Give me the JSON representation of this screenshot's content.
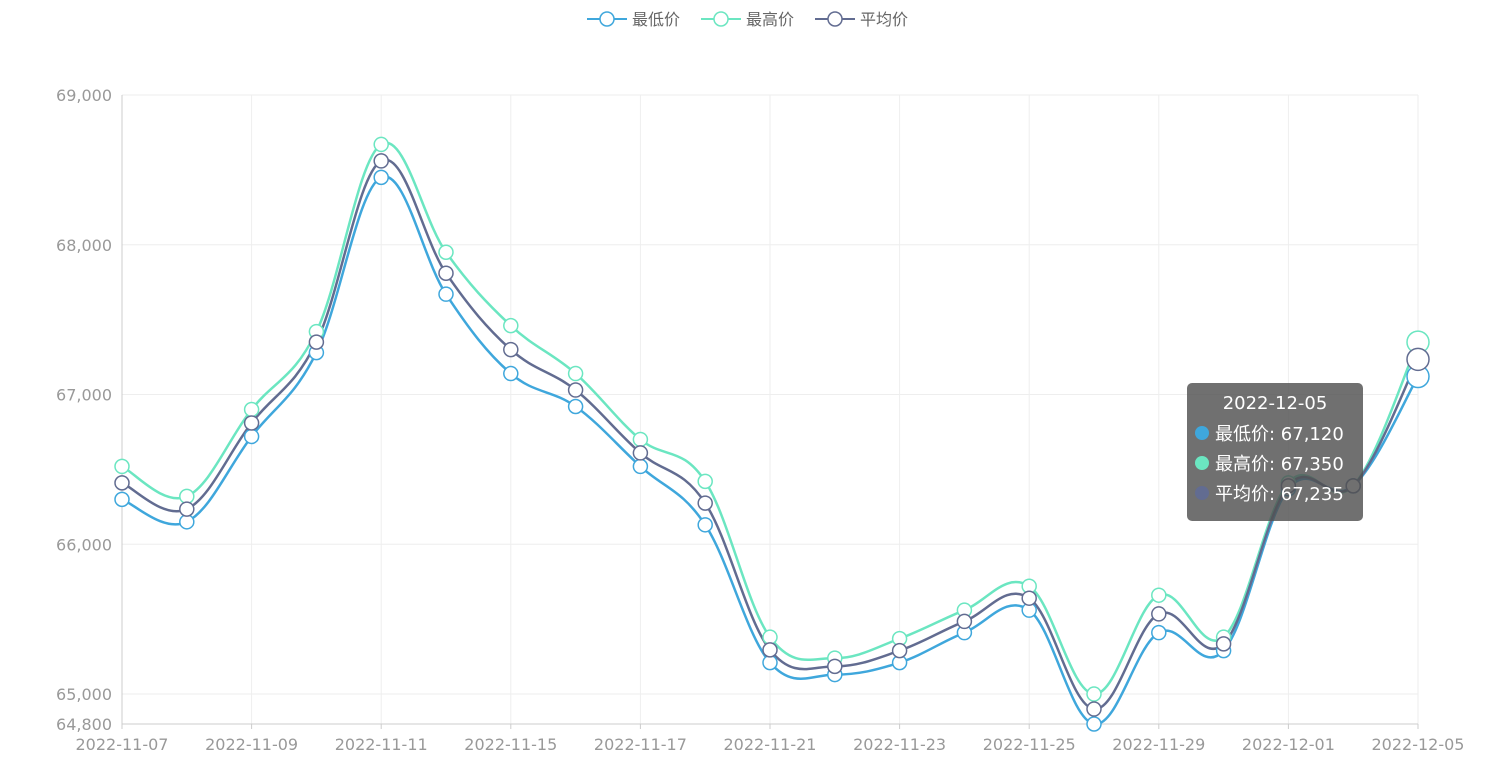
{
  "chart_data": {
    "type": "line",
    "smooth": true,
    "x": [
      "2022-11-07",
      "2022-11-08",
      "2022-11-09",
      "2022-11-10",
      "2022-11-11",
      "2022-11-14",
      "2022-11-15",
      "2022-11-16",
      "2022-11-17",
      "2022-11-18",
      "2022-11-21",
      "2022-11-22",
      "2022-11-23",
      "2022-11-24",
      "2022-11-25",
      "2022-11-28",
      "2022-11-29",
      "2022-11-30",
      "2022-12-01",
      "2022-12-02",
      "2022-12-05"
    ],
    "x_tick_labels": [
      "2022-11-07",
      "2022-11-09",
      "2022-11-11",
      "2022-11-15",
      "2022-11-17",
      "2022-11-21",
      "2022-11-23",
      "2022-11-25",
      "2022-11-29",
      "2022-12-01",
      "2022-12-05"
    ],
    "y_tick_labels": [
      "69,000",
      "68,000",
      "67,000",
      "66,000",
      "65,000",
      "64,800"
    ],
    "ylim": [
      64800,
      69000
    ],
    "grid": true,
    "legend_position": "top-center",
    "series": [
      {
        "name": "最低价",
        "color": "#3fa7dc",
        "values": [
          66300,
          66150,
          66720,
          67280,
          68450,
          67670,
          67140,
          66920,
          66520,
          66130,
          65210,
          65130,
          65210,
          65410,
          65560,
          64800,
          65410,
          65290,
          66370,
          66390,
          67120
        ]
      },
      {
        "name": "最高价",
        "color": "#6be6c1",
        "values": [
          66520,
          66320,
          66900,
          67420,
          68670,
          67950,
          67460,
          67140,
          66700,
          66420,
          65380,
          65240,
          65370,
          65560,
          65720,
          65000,
          65660,
          65380,
          66410,
          66390,
          67350
        ]
      },
      {
        "name": "平均价",
        "color": "#626c91",
        "values": [
          66410,
          66235,
          66810,
          67350,
          68560,
          67810,
          67300,
          67030,
          66610,
          66275,
          65295,
          65185,
          65290,
          65485,
          65640,
          64900,
          65535,
          65335,
          66390,
          66390,
          67235
        ]
      }
    ],
    "tooltip": {
      "title": "2022-12-05",
      "rows": [
        {
          "label": "最低价: 67,120",
          "color": "#3fa7dc"
        },
        {
          "label": "最高价: 67,350",
          "color": "#6be6c1"
        },
        {
          "label": "平均价: 67,235",
          "color": "#626c91"
        }
      ]
    }
  }
}
